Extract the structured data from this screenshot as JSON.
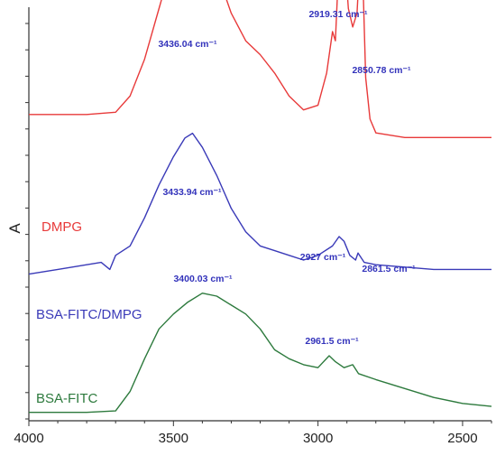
{
  "chart_data": {
    "type": "line",
    "title": "",
    "xlabel": "",
    "ylabel": "A",
    "xlim": [
      4000,
      2400
    ],
    "x_reversed": true,
    "x_ticks": [
      "4000",
      "3500",
      "3000",
      "2500"
    ],
    "y_ticks_shown": false,
    "grid": false,
    "series": [
      {
        "name": "DMPG",
        "color": "#e83a3a",
        "points": [
          [
            4000,
            0.52
          ],
          [
            3800,
            0.52
          ],
          [
            3700,
            0.525
          ],
          [
            3650,
            0.56
          ],
          [
            3600,
            0.64
          ],
          [
            3550,
            0.75
          ],
          [
            3500,
            0.86
          ],
          [
            3460,
            0.93
          ],
          [
            3436.04,
            0.95
          ],
          [
            3400,
            0.92
          ],
          [
            3350,
            0.83
          ],
          [
            3300,
            0.74
          ],
          [
            3250,
            0.68
          ],
          [
            3200,
            0.65
          ],
          [
            3150,
            0.61
          ],
          [
            3100,
            0.56
          ],
          [
            3050,
            0.53
          ],
          [
            3000,
            0.54
          ],
          [
            2970,
            0.61
          ],
          [
            2950,
            0.7
          ],
          [
            2940,
            0.68
          ],
          [
            2930,
            0.82
          ],
          [
            2919.31,
            1.0
          ],
          [
            2910,
            0.88
          ],
          [
            2895,
            0.75
          ],
          [
            2880,
            0.71
          ],
          [
            2865,
            0.74
          ],
          [
            2855,
            0.86
          ],
          [
            2850.78,
            0.95
          ],
          [
            2845,
            0.82
          ],
          [
            2835,
            0.6
          ],
          [
            2820,
            0.51
          ],
          [
            2800,
            0.48
          ],
          [
            2700,
            0.47
          ],
          [
            2600,
            0.47
          ],
          [
            2500,
            0.47
          ],
          [
            2400,
            0.47
          ]
        ]
      },
      {
        "name": "BSA-FITC/DMPG",
        "color": "#3a3ab8",
        "points": [
          [
            4000,
            0.32
          ],
          [
            3900,
            0.33
          ],
          [
            3800,
            0.34
          ],
          [
            3750,
            0.345
          ],
          [
            3720,
            0.33
          ],
          [
            3700,
            0.36
          ],
          [
            3650,
            0.38
          ],
          [
            3600,
            0.44
          ],
          [
            3550,
            0.51
          ],
          [
            3500,
            0.57
          ],
          [
            3460,
            0.61
          ],
          [
            3433.94,
            0.62
          ],
          [
            3400,
            0.59
          ],
          [
            3350,
            0.53
          ],
          [
            3300,
            0.46
          ],
          [
            3250,
            0.41
          ],
          [
            3200,
            0.38
          ],
          [
            3150,
            0.37
          ],
          [
            3100,
            0.36
          ],
          [
            3050,
            0.35
          ],
          [
            3000,
            0.36
          ],
          [
            2950,
            0.38
          ],
          [
            2927,
            0.4
          ],
          [
            2910,
            0.39
          ],
          [
            2890,
            0.36
          ],
          [
            2870,
            0.35
          ],
          [
            2861.5,
            0.365
          ],
          [
            2840,
            0.345
          ],
          [
            2800,
            0.34
          ],
          [
            2700,
            0.335
          ],
          [
            2600,
            0.33
          ],
          [
            2500,
            0.33
          ],
          [
            2400,
            0.33
          ]
        ]
      },
      {
        "name": "BSA-FITC",
        "color": "#2d7a3d",
        "points": [
          [
            4000,
            0.01
          ],
          [
            3800,
            0.01
          ],
          [
            3700,
            0.015
          ],
          [
            3650,
            0.08
          ],
          [
            3600,
            0.19
          ],
          [
            3550,
            0.29
          ],
          [
            3500,
            0.34
          ],
          [
            3450,
            0.38
          ],
          [
            3400.03,
            0.41
          ],
          [
            3350,
            0.4
          ],
          [
            3300,
            0.37
          ],
          [
            3250,
            0.34
          ],
          [
            3200,
            0.29
          ],
          [
            3150,
            0.22
          ],
          [
            3100,
            0.19
          ],
          [
            3050,
            0.17
          ],
          [
            3000,
            0.16
          ],
          [
            2961.5,
            0.2
          ],
          [
            2940,
            0.18
          ],
          [
            2910,
            0.16
          ],
          [
            2880,
            0.17
          ],
          [
            2860,
            0.14
          ],
          [
            2800,
            0.12
          ],
          [
            2700,
            0.09
          ],
          [
            2600,
            0.06
          ],
          [
            2500,
            0.04
          ],
          [
            2400,
            0.03
          ]
        ]
      }
    ],
    "annotations": [
      {
        "text": "3436.04 cm⁻¹",
        "x": 3436.04,
        "series": "DMPG"
      },
      {
        "text": "2919.31 cm⁻¹",
        "x": 2919.31,
        "series": "DMPG"
      },
      {
        "text": "2850.78 cm⁻¹",
        "x": 2850.78,
        "series": "DMPG"
      },
      {
        "text": "3433.94 cm⁻¹",
        "x": 3433.94,
        "series": "BSA-FITC/DMPG"
      },
      {
        "text": "2927 cm⁻¹",
        "x": 2927,
        "series": "BSA-FITC/DMPG"
      },
      {
        "text": "2861.5 cm⁻¹",
        "x": 2861.5,
        "series": "BSA-FITC/DMPG"
      },
      {
        "text": "3400.03 cm⁻¹",
        "x": 3400.03,
        "series": "BSA-FITC"
      },
      {
        "text": "2961.5 cm⁻¹",
        "x": 2961.5,
        "series": "BSA-FITC"
      }
    ]
  }
}
